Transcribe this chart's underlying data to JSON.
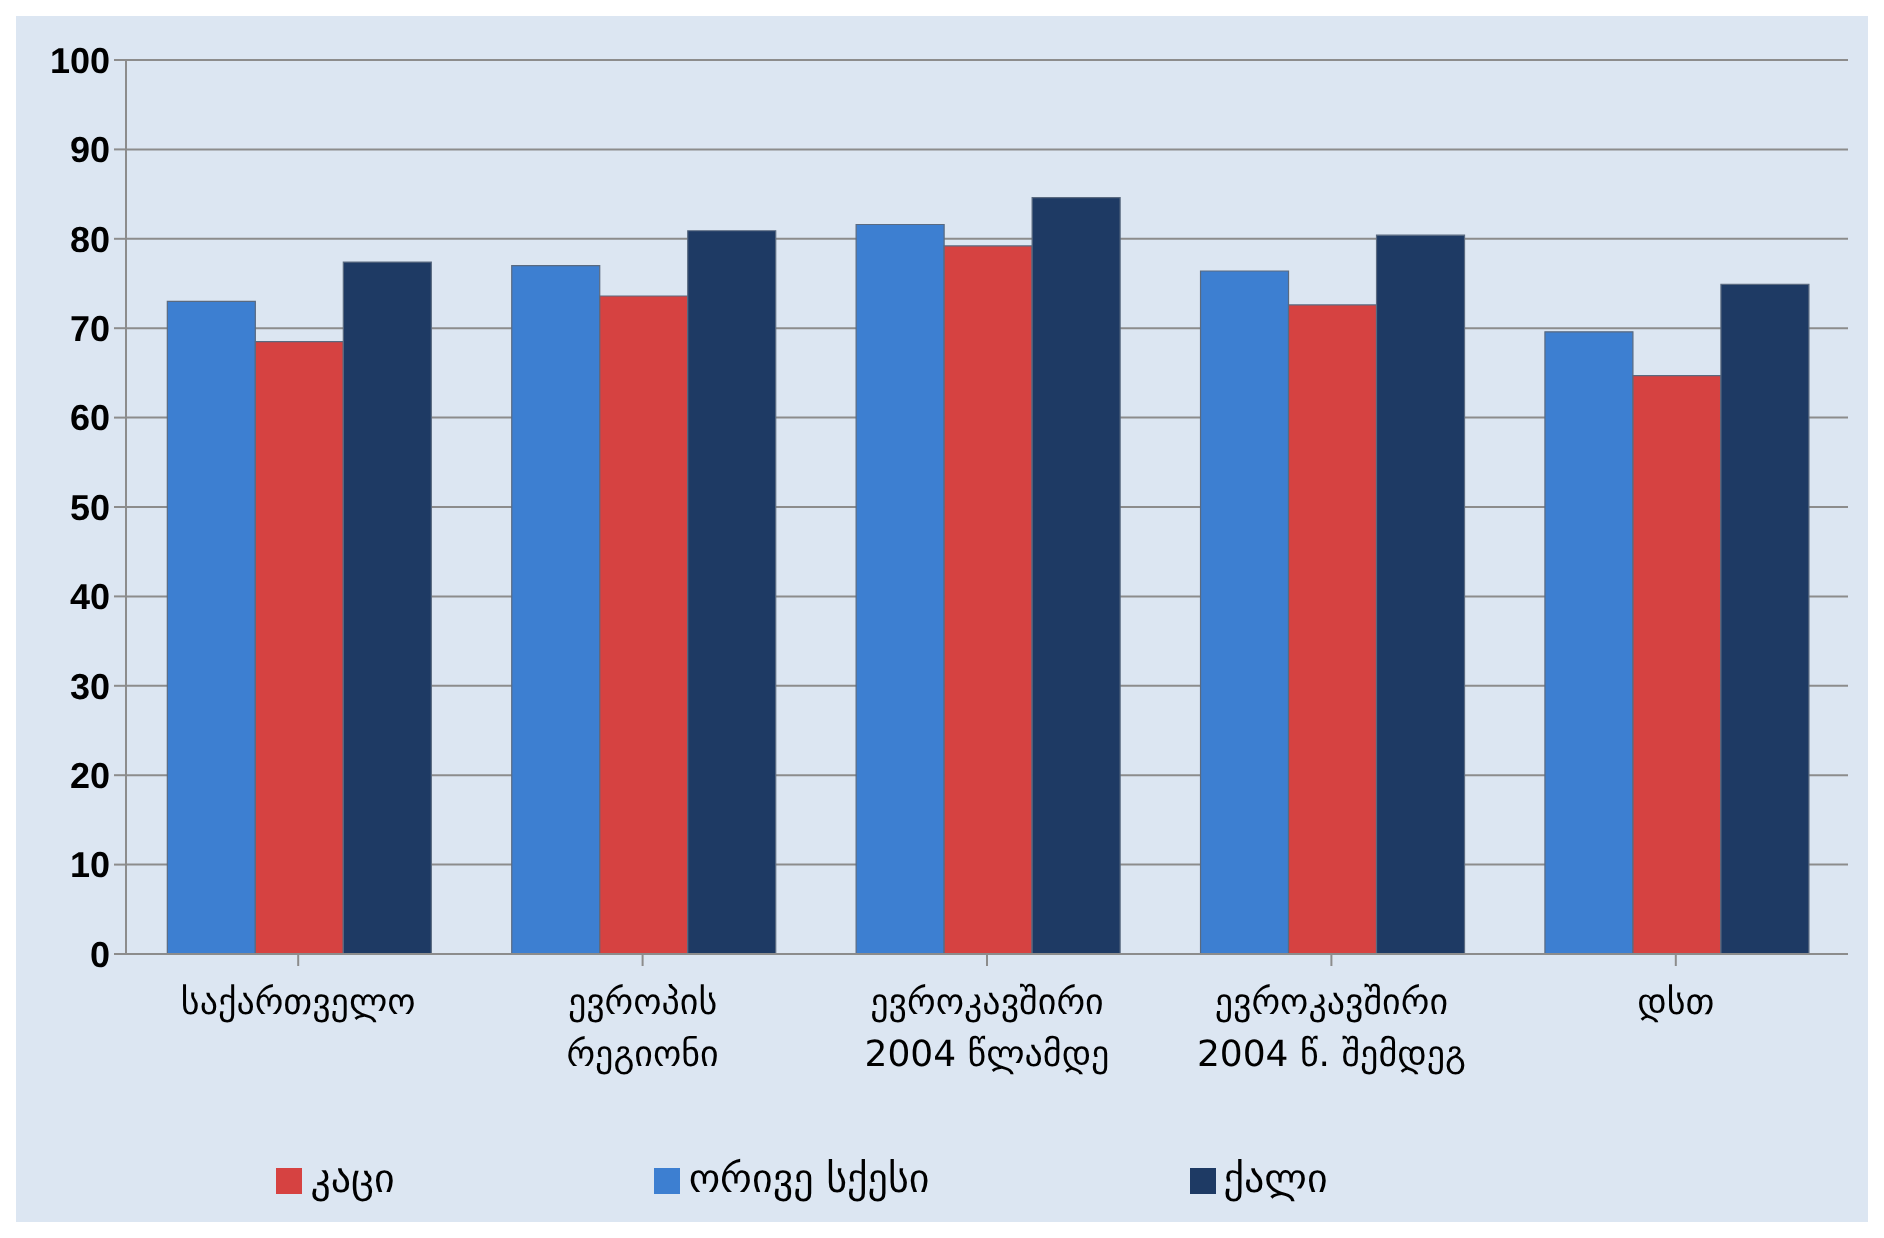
{
  "chart_data": {
    "type": "bar",
    "categories": [
      "საქართველო",
      "ევროპის\nრეგიონი",
      "ევროკავშირი\n2004 წლამდე",
      "ევროკავშირი\n2004 წ. შემდეგ",
      "დსთ"
    ],
    "series": [
      {
        "name": "ორივე  სქესი",
        "color": "#3d7fd1",
        "values": [
          73.0,
          77.0,
          81.6,
          76.4,
          69.6
        ]
      },
      {
        "name": "კაცი",
        "color": "#d64241",
        "values": [
          68.5,
          73.6,
          79.2,
          72.6,
          64.7
        ]
      },
      {
        "name": "ქალი",
        "color": "#1e3a64",
        "values": [
          77.4,
          80.9,
          84.6,
          80.4,
          74.9
        ]
      }
    ],
    "ylim": [
      0,
      100
    ],
    "yticks": [
      0,
      10,
      20,
      30,
      40,
      50,
      60,
      70,
      80,
      90,
      100
    ],
    "grid": "y",
    "legend": "bottom"
  }
}
